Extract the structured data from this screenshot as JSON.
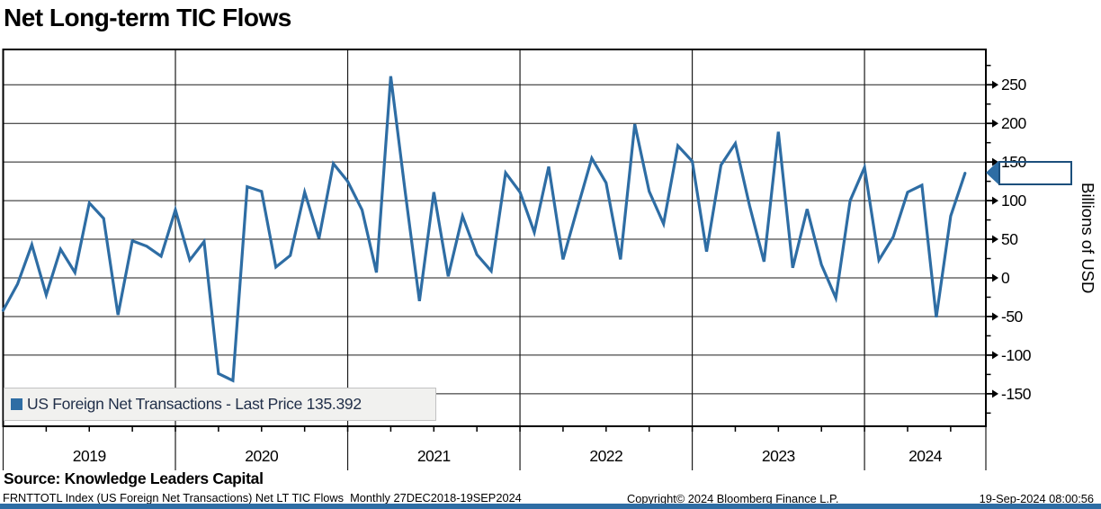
{
  "title": "Net Long-term TIC Flows",
  "legend": {
    "label": "US Foreign Net Transactions - Last Price 135.392"
  },
  "last_price": {
    "value": "135.392"
  },
  "y_axis": {
    "title": "Billions of USD",
    "major_ticks": [
      250,
      200,
      150,
      100,
      50,
      0,
      -50,
      -100,
      -150
    ],
    "minor_step": 25
  },
  "x_axis": {
    "years": [
      "2019",
      "2020",
      "2021",
      "2022",
      "2023",
      "2024"
    ]
  },
  "source": "Source: Knowledge Leaders Capital",
  "footer": {
    "left": "FRNTTOTL Index (US Foreign Net Transactions) Net LT TIC Flows  Monthly 27DEC2018-19SEP2024",
    "center": "Copyright© 2024 Bloomberg Finance L.P.",
    "right": "19-Sep-2024 08:00:56"
  },
  "colors": {
    "line": "#2e6da4",
    "flag_fill": "#2e6da4",
    "flag_border": "#1c4f7c",
    "grid": "#1b1b1b",
    "frame": "#000000",
    "legend_bg": "#f1f1ef",
    "accent_bar": "#2e6da4"
  },
  "chart_data": {
    "type": "line",
    "title": "Net Long-term TIC Flows",
    "series_name": "US Foreign Net Transactions",
    "frequency": "Monthly",
    "date_range": "27DEC2018-19SEP2024",
    "xlabel": "",
    "ylabel": "Billions of USD",
    "ylim": [
      -192,
      296
    ],
    "grid": true,
    "legend_position": "bottom-left",
    "last_price": 135.392,
    "months": [
      "Dec 2018",
      "Jan 2019",
      "Feb 2019",
      "Mar 2019",
      "Apr 2019",
      "May 2019",
      "Jun 2019",
      "Jul 2019",
      "Aug 2019",
      "Sep 2019",
      "Oct 2019",
      "Nov 2019",
      "Dec 2019",
      "Jan 2020",
      "Feb 2020",
      "Mar 2020",
      "Apr 2020",
      "May 2020",
      "Jun 2020",
      "Jul 2020",
      "Aug 2020",
      "Sep 2020",
      "Oct 2020",
      "Nov 2020",
      "Dec 2020",
      "Jan 2021",
      "Feb 2021",
      "Mar 2021",
      "Apr 2021",
      "May 2021",
      "Jun 2021",
      "Jul 2021",
      "Aug 2021",
      "Sep 2021",
      "Oct 2021",
      "Nov 2021",
      "Dec 2021",
      "Jan 2022",
      "Feb 2022",
      "Mar 2022",
      "Apr 2022",
      "May 2022",
      "Jun 2022",
      "Jul 2022",
      "Aug 2022",
      "Sep 2022",
      "Oct 2022",
      "Nov 2022",
      "Dec 2022",
      "Jan 2023",
      "Feb 2023",
      "Mar 2023",
      "Apr 2023",
      "May 2023",
      "Jun 2023",
      "Jul 2023",
      "Aug 2023",
      "Sep 2023",
      "Oct 2023",
      "Nov 2023",
      "Dec 2023",
      "Jan 2024",
      "Feb 2024",
      "Mar 2024",
      "Apr 2024",
      "May 2024",
      "Jun 2024",
      "Jul 2024"
    ],
    "values": [
      -42,
      -8,
      43,
      -22,
      37,
      7,
      97,
      77,
      -48,
      48,
      41,
      28,
      88,
      23,
      47,
      -124,
      -133,
      118,
      112,
      14,
      29,
      111,
      51,
      148,
      125,
      88,
      7,
      261,
      112,
      -30,
      111,
      2,
      80,
      30,
      9,
      136,
      111,
      59,
      144,
      24,
      90,
      155,
      123,
      24,
      199,
      112,
      70,
      171,
      151,
      34,
      146,
      174,
      93,
      21,
      189,
      13,
      89,
      17,
      -26,
      100,
      143,
      23,
      53,
      111,
      120,
      -51,
      80,
      135.392
    ]
  }
}
